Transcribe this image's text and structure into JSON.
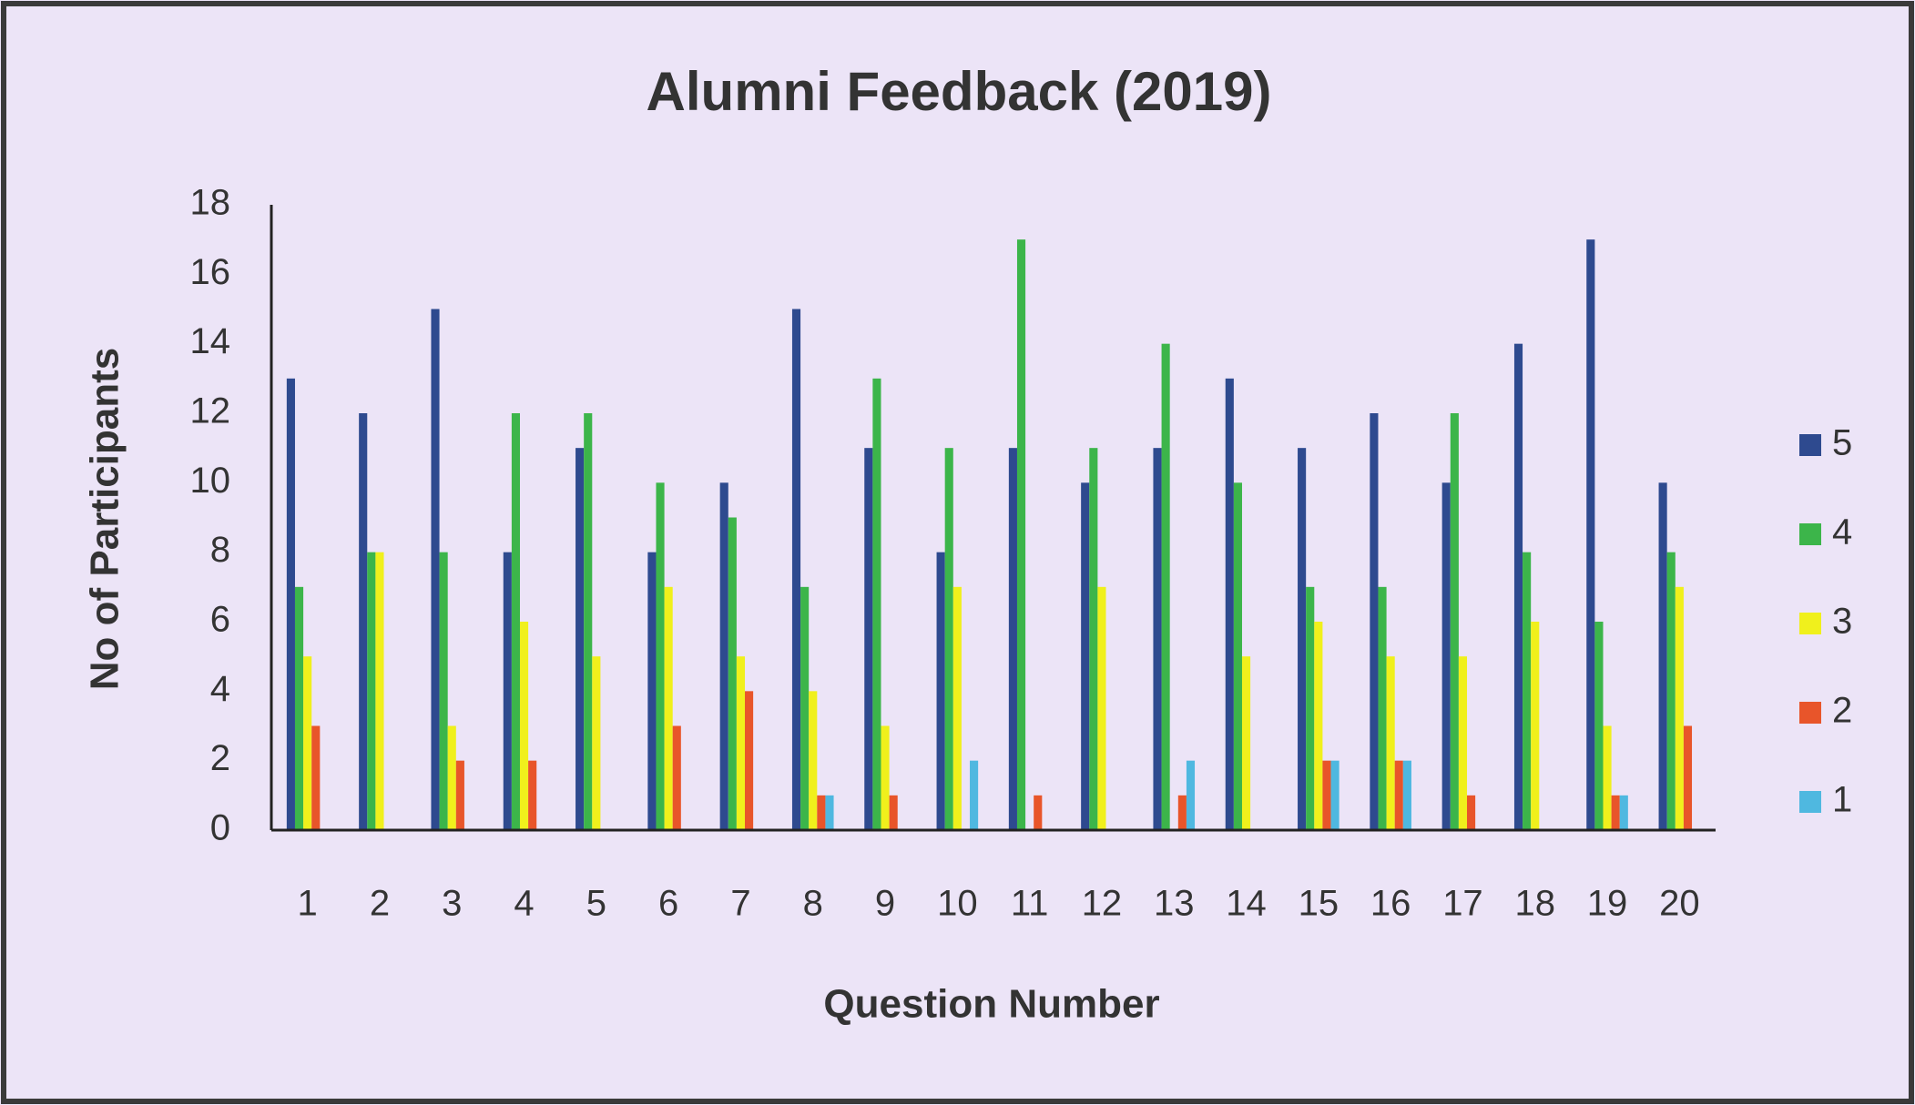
{
  "chart_data": {
    "type": "bar",
    "title": "Alumni Feedback (2019)",
    "x_label": "Question Number",
    "y_label": "No of Participants",
    "categories": [
      "1",
      "2",
      "3",
      "4",
      "5",
      "6",
      "7",
      "8",
      "9",
      "10",
      "11",
      "12",
      "13",
      "14",
      "15",
      "16",
      "17",
      "18",
      "19",
      "20"
    ],
    "series": [
      {
        "name": "5",
        "color": "#2e4a8f",
        "values": [
          13,
          12,
          15,
          8,
          11,
          8,
          10,
          15,
          11,
          8,
          11,
          10,
          11,
          13,
          11,
          12,
          10,
          14,
          17,
          10
        ]
      },
      {
        "name": "4",
        "color": "#3cb54a",
        "values": [
          7,
          8,
          8,
          12,
          12,
          10,
          9,
          7,
          13,
          11,
          17,
          11,
          14,
          10,
          7,
          7,
          12,
          8,
          6,
          8
        ]
      },
      {
        "name": "3",
        "color": "#f0f01c",
        "values": [
          5,
          8,
          3,
          6,
          5,
          7,
          5,
          4,
          3,
          7,
          0,
          7,
          0,
          5,
          6,
          5,
          5,
          6,
          3,
          7
        ]
      },
      {
        "name": "2",
        "color": "#e8552a",
        "values": [
          3,
          0,
          2,
          2,
          0,
          3,
          4,
          1,
          1,
          0,
          1,
          0,
          1,
          0,
          2,
          2,
          1,
          0,
          1,
          3
        ]
      },
      {
        "name": "1",
        "color": "#4fb8e0",
        "values": [
          0,
          0,
          0,
          0,
          0,
          0,
          0,
          1,
          0,
          2,
          0,
          0,
          2,
          0,
          2,
          2,
          0,
          0,
          1,
          0
        ]
      }
    ],
    "ylim": [
      0,
      18
    ],
    "yticks": [
      0,
      2,
      4,
      6,
      8,
      10,
      12,
      14,
      16,
      18
    ],
    "grid": false,
    "legend": "right"
  }
}
